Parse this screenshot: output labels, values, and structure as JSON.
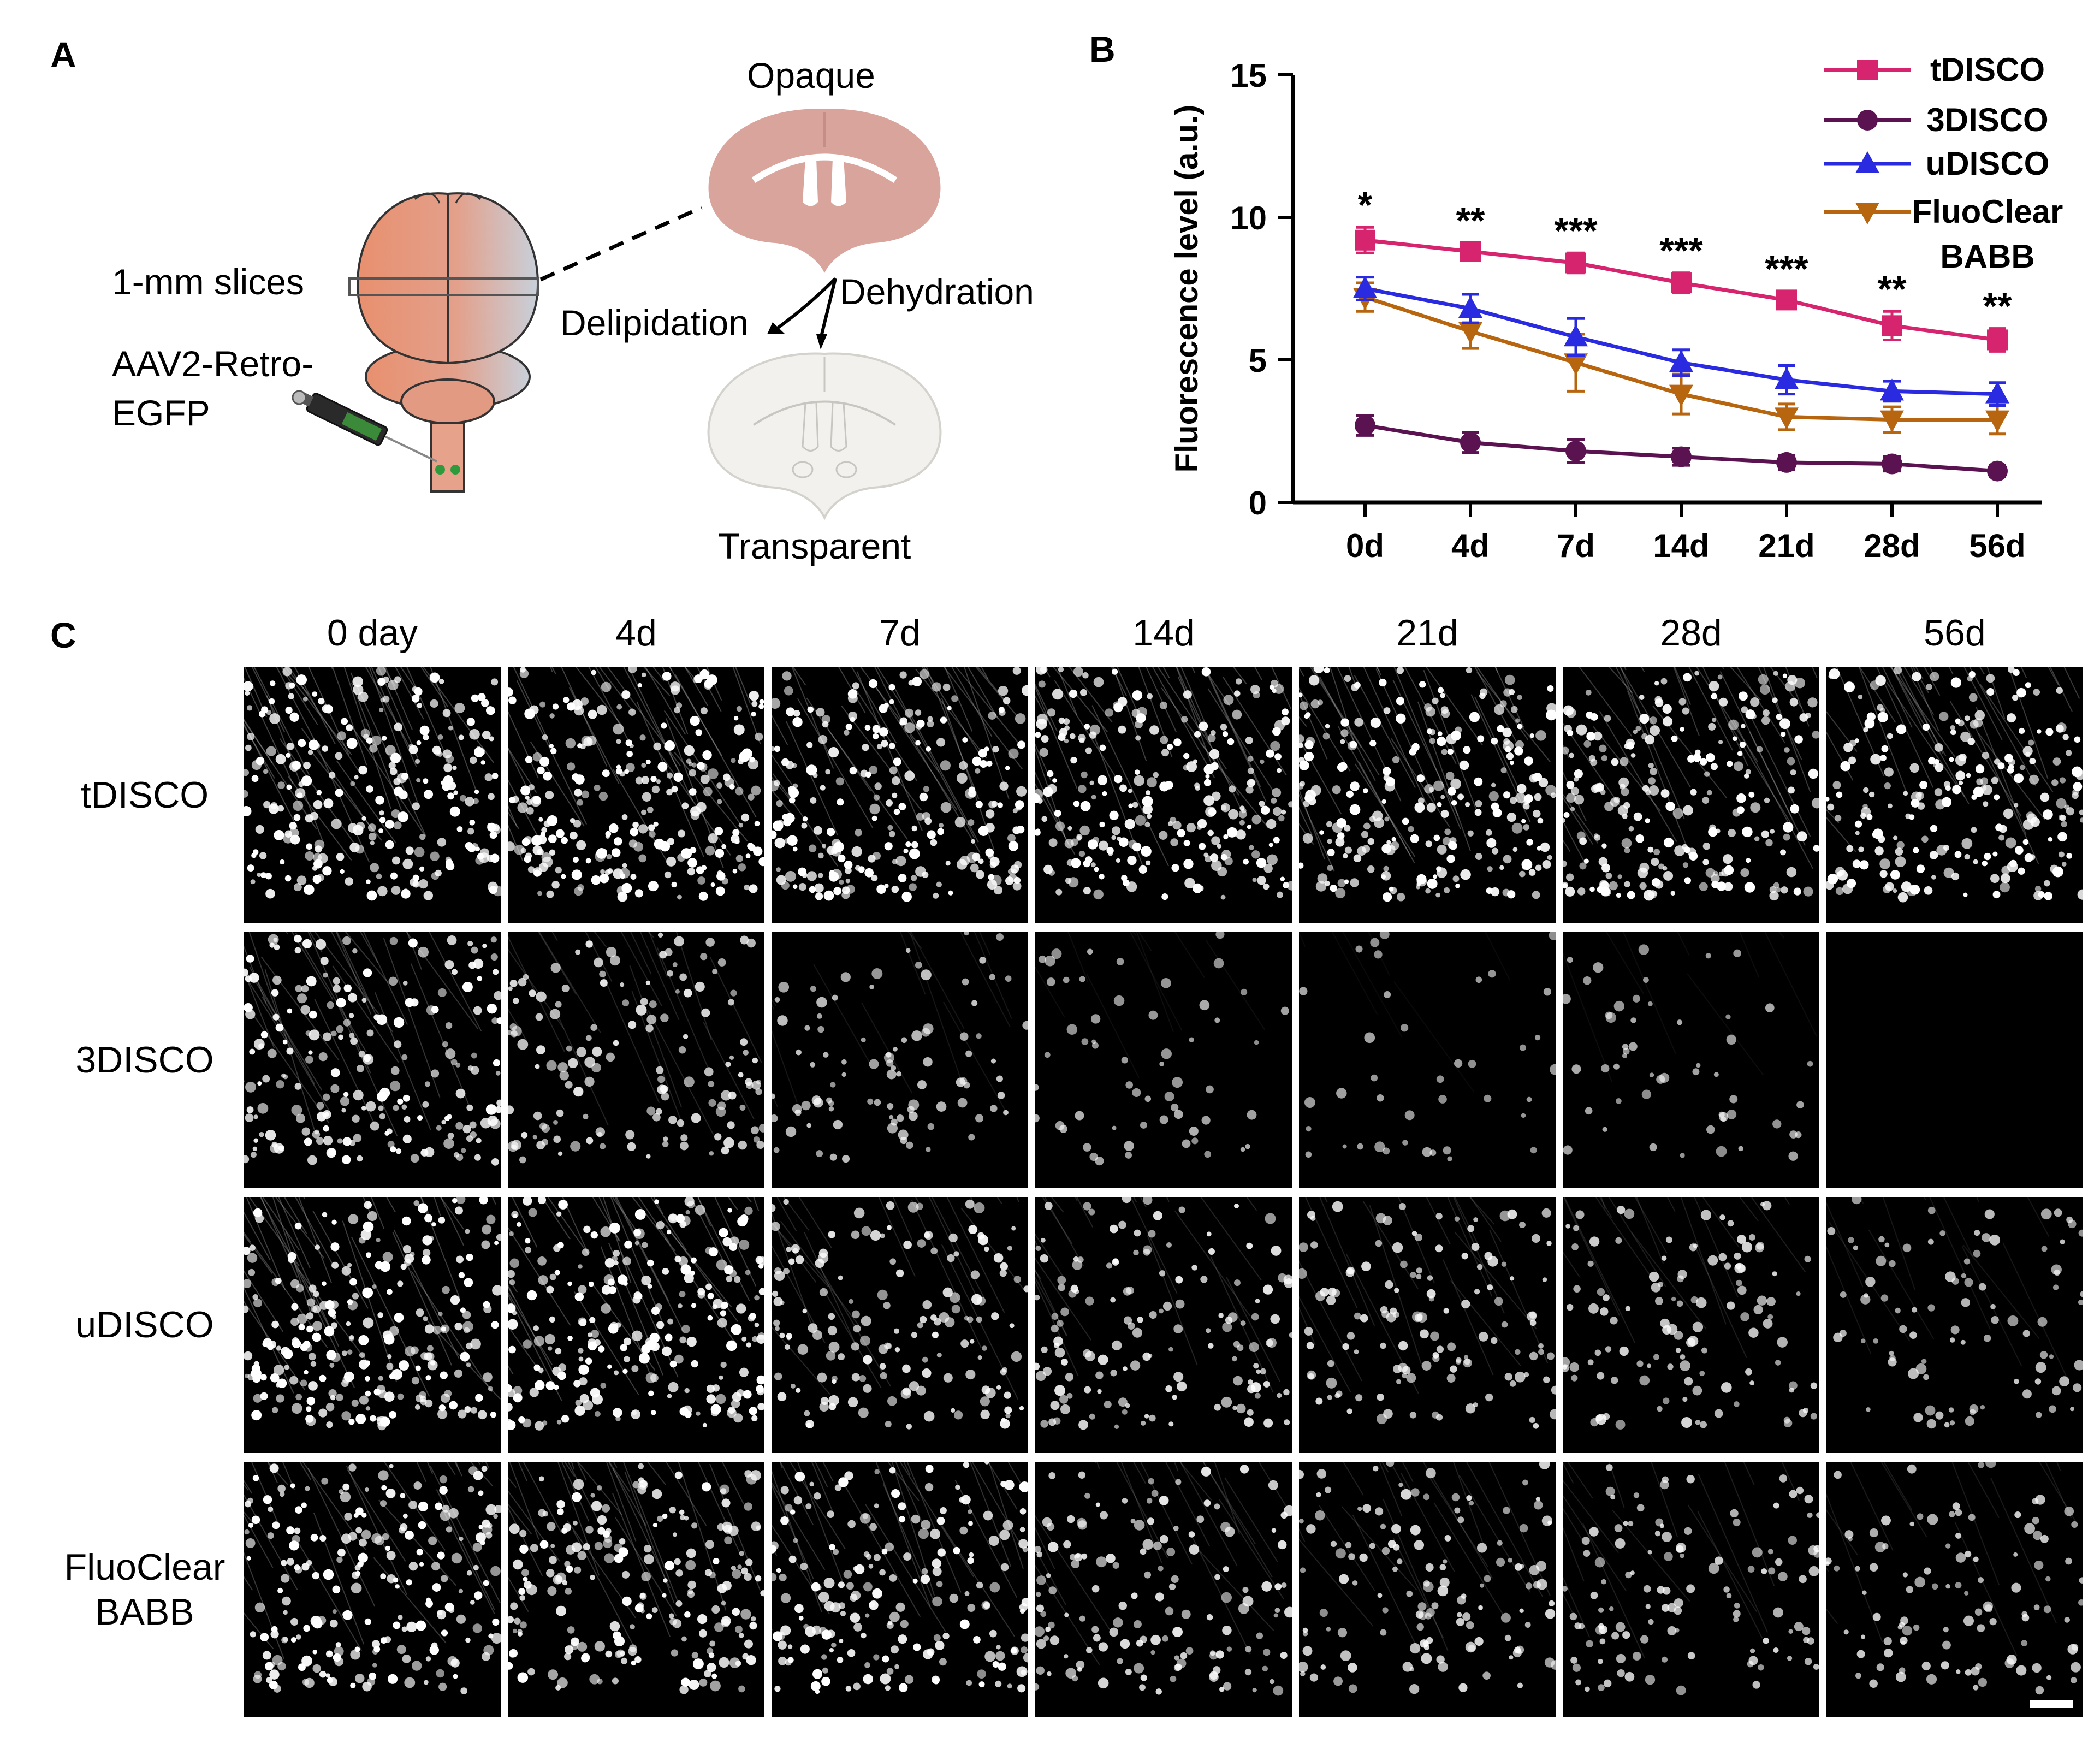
{
  "panelA": {
    "letter": "A",
    "slices_label": "1-mm slices",
    "virus_label_1": "AAV2-Retro-",
    "virus_label_2": "EGFP",
    "opaque_label": "Opaque",
    "dehydration_label": "Dehydration",
    "delipidation_label": "Delipidation",
    "transparent_label": "Transparent",
    "colors": {
      "brain_top": "#e8967a",
      "brain_side": "#c9d1da",
      "slice_opaque": "#d9a49c",
      "slice_clear": "#f2f1ee"
    }
  },
  "panelB": {
    "letter": "B"
  },
  "chart_data": {
    "type": "line",
    "ylabel": "Fluorescence level (a.u.)",
    "xlabel": "",
    "categories": [
      "0d",
      "4d",
      "7d",
      "14d",
      "21d",
      "28d",
      "56d"
    ],
    "ylim": [
      0,
      15
    ],
    "yticks": [
      0,
      5,
      10,
      15
    ],
    "legend_position": "top-right",
    "series": [
      {
        "name": "tDISCO",
        "color": "#d6246e",
        "marker": "square",
        "values": [
          9.2,
          8.8,
          8.4,
          7.7,
          7.1,
          6.2,
          5.7
        ],
        "errors": [
          0.45,
          0.3,
          0.35,
          0.35,
          0.3,
          0.5,
          0.4
        ]
      },
      {
        "name": "3DISCO",
        "color": "#5a1250",
        "marker": "circle",
        "values": [
          2.7,
          2.1,
          1.8,
          1.6,
          1.4,
          1.35,
          1.1
        ],
        "errors": [
          0.35,
          0.35,
          0.4,
          0.3,
          0.25,
          0.25,
          0.2
        ]
      },
      {
        "name": "uDISCO",
        "color": "#2a2ae0",
        "marker": "triangle-up",
        "values": [
          7.5,
          6.8,
          5.8,
          4.9,
          4.3,
          3.9,
          3.8
        ],
        "errors": [
          0.4,
          0.5,
          0.65,
          0.45,
          0.5,
          0.35,
          0.4
        ]
      },
      {
        "name": "FluoClear BABB",
        "legend_lines": [
          "FluoClear",
          "BABB"
        ],
        "color": "#b8650f",
        "marker": "triangle-down",
        "values": [
          7.2,
          6.0,
          4.9,
          3.8,
          3.0,
          2.9,
          2.9
        ],
        "errors": [
          0.5,
          0.6,
          1.0,
          0.7,
          0.45,
          0.45,
          0.5
        ]
      }
    ],
    "annotations": [
      "*",
      "**",
      "***",
      "***",
      "***",
      "**",
      "**"
    ]
  },
  "panelC": {
    "letter": "C",
    "columns": [
      "0 day",
      "4d",
      "7d",
      "14d",
      "21d",
      "28d",
      "56d"
    ],
    "rows": [
      {
        "label_lines": [
          "tDISCO"
        ]
      },
      {
        "label_lines": [
          "3DISCO"
        ]
      },
      {
        "label_lines": [
          "uDISCO"
        ]
      },
      {
        "label_lines": [
          "FluoClear",
          "BABB"
        ]
      }
    ],
    "brightness": [
      [
        1.0,
        1.0,
        0.95,
        0.95,
        0.95,
        0.9,
        0.9
      ],
      [
        0.8,
        0.55,
        0.35,
        0.22,
        0.15,
        0.2,
        0.0
      ],
      [
        0.95,
        0.95,
        0.6,
        0.55,
        0.5,
        0.45,
        0.35
      ],
      [
        0.85,
        0.8,
        0.75,
        0.55,
        0.5,
        0.45,
        0.4
      ]
    ]
  }
}
